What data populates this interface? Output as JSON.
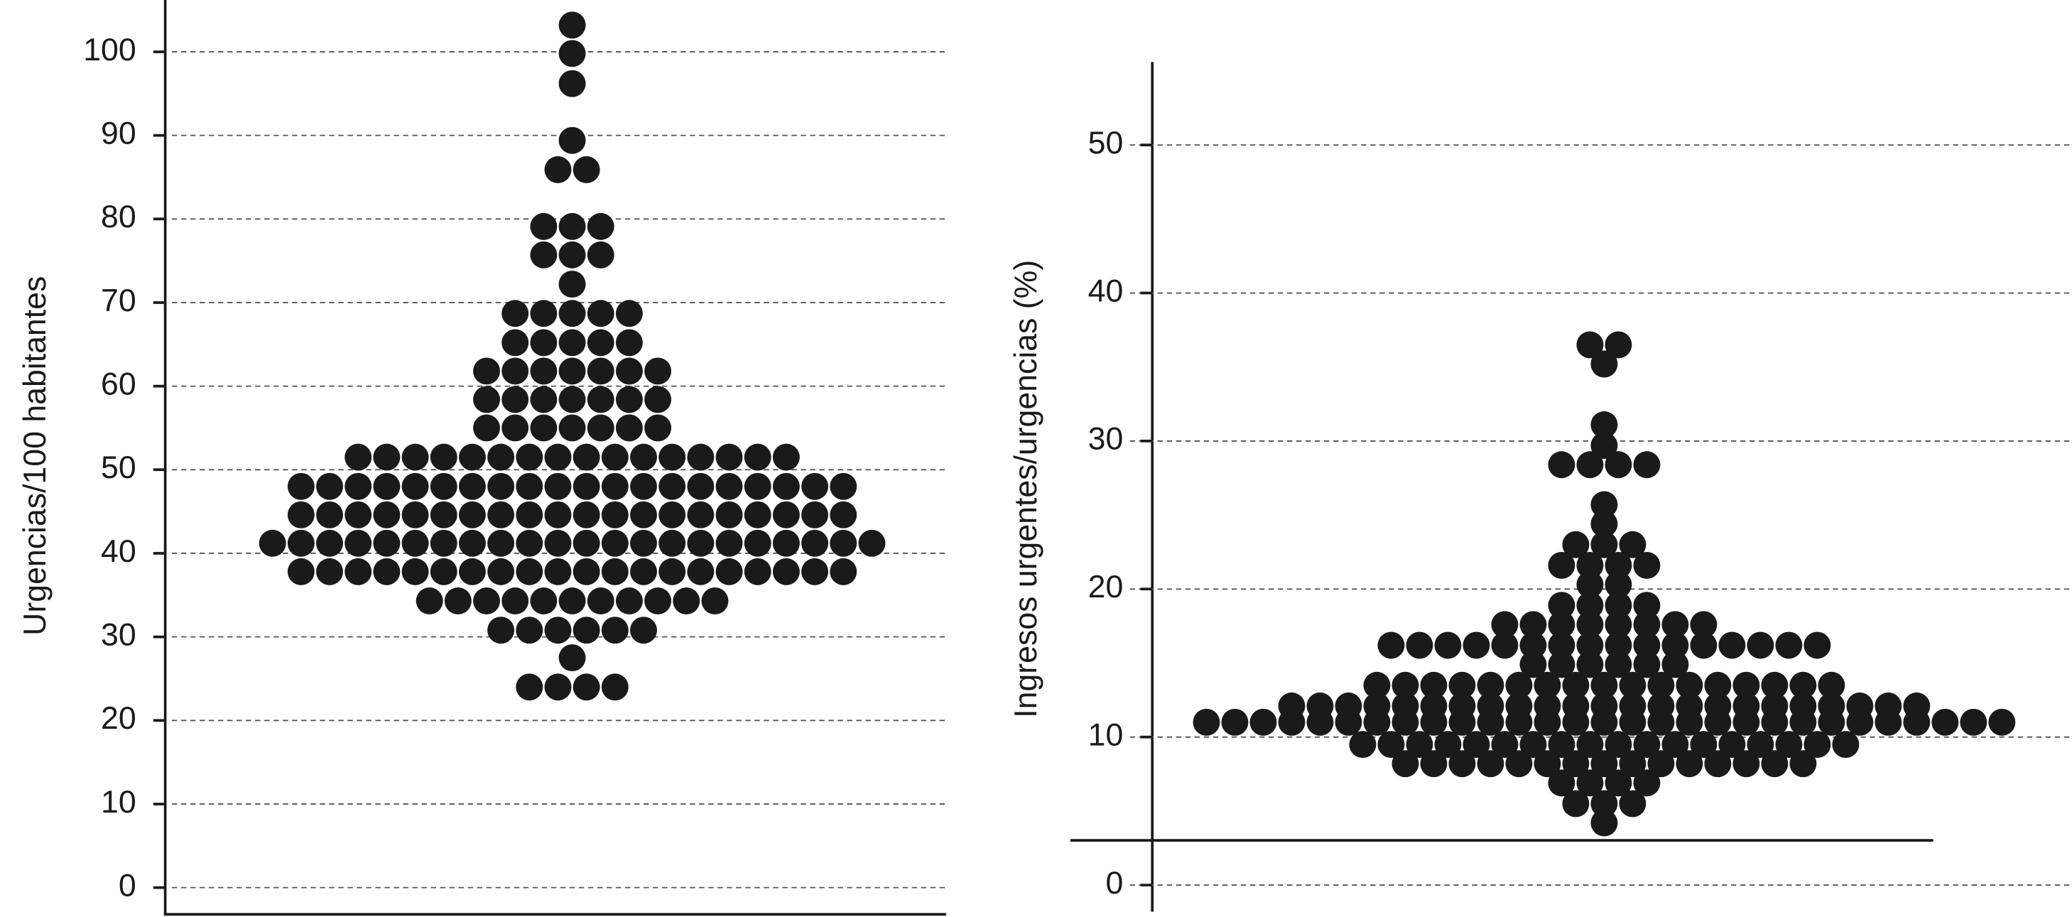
{
  "chart_data": [
    {
      "type": "dot",
      "ylabel": "Urgencias/100 habitantes",
      "color": "#1a1a1a",
      "grid": true,
      "ylim": [
        -3.2,
        106.2
      ],
      "yticks": [
        0,
        10,
        20,
        30,
        40,
        50,
        60,
        70,
        80,
        90,
        100
      ],
      "values": [
        103.2,
        99.8,
        96.2,
        89.4,
        85.9,
        85.9,
        79.1,
        79.1,
        79.1,
        75.7,
        75.7,
        75.7,
        72.2,
        68.7,
        68.7,
        68.7,
        68.7,
        68.7,
        65.2,
        65.2,
        65.2,
        65.2,
        65.2,
        61.8,
        61.8,
        61.8,
        61.8,
        61.8,
        61.8,
        61.8,
        58.4,
        58.4,
        58.4,
        58.4,
        58.4,
        58.4,
        58.4,
        55,
        55,
        55,
        55,
        55,
        55,
        55,
        51.5,
        51.5,
        51.5,
        51.5,
        51.5,
        51.5,
        51.5,
        51.5,
        51.5,
        51.5,
        51.5,
        51.5,
        51.5,
        51.5,
        51.5,
        51.5,
        48,
        48,
        48,
        48,
        48,
        48,
        48,
        48,
        48,
        48,
        48,
        48,
        48,
        48,
        48,
        48,
        48,
        48,
        48,
        48,
        44.6,
        44.6,
        44.6,
        44.6,
        44.6,
        44.6,
        44.6,
        44.6,
        44.6,
        44.6,
        44.6,
        44.6,
        44.6,
        44.6,
        44.6,
        44.6,
        44.6,
        44.6,
        44.6,
        44.6,
        41.2,
        41.2,
        41.2,
        41.2,
        41.2,
        41.2,
        41.2,
        41.2,
        41.2,
        41.2,
        41.2,
        41.2,
        41.2,
        41.2,
        41.2,
        41.2,
        41.2,
        41.2,
        41.2,
        41.2,
        41.2,
        41.2,
        37.8,
        37.8,
        37.8,
        37.8,
        37.8,
        37.8,
        37.8,
        37.8,
        37.8,
        37.8,
        37.8,
        37.8,
        37.8,
        37.8,
        37.8,
        37.8,
        37.8,
        37.8,
        37.8,
        37.8,
        34.3,
        34.3,
        34.3,
        34.3,
        34.3,
        34.3,
        34.3,
        34.3,
        34.3,
        34.3,
        34.3,
        30.8,
        30.8,
        30.8,
        30.8,
        30.8,
        30.8,
        27.5,
        24,
        24,
        24,
        24
      ]
    },
    {
      "type": "dot",
      "ylabel": "Ingresos urgentes/urgencias (%)",
      "color": "#1a1a1a",
      "grid": true,
      "ylim": [
        -1.8,
        55.6
      ],
      "yticks": [
        0,
        10,
        20,
        30,
        40,
        50
      ],
      "values": [
        36.5,
        36.5,
        35.2,
        31.1,
        29.7,
        28.4,
        28.4,
        28.4,
        28.4,
        25.7,
        24.4,
        23,
        23,
        23,
        21.6,
        21.6,
        21.6,
        21.6,
        20.3,
        20.3,
        18.9,
        18.9,
        18.9,
        18.9,
        17.6,
        17.6,
        17.6,
        17.6,
        17.6,
        17.6,
        17.6,
        17.6,
        16.2,
        16.2,
        16.2,
        16.2,
        16.2,
        16.2,
        16.2,
        16.2,
        16.2,
        16.2,
        16.2,
        16.2,
        16.2,
        16.2,
        16.2,
        16.2,
        14.9,
        14.9,
        14.9,
        14.9,
        14.9,
        14.9,
        13.5,
        13.5,
        13.5,
        13.5,
        13.5,
        13.5,
        13.5,
        13.5,
        13.5,
        13.5,
        13.5,
        13.5,
        13.5,
        13.5,
        13.5,
        13.5,
        13.5,
        12.1,
        12.1,
        12.1,
        12.1,
        12.1,
        12.1,
        12.1,
        12.1,
        12.1,
        12.1,
        12.1,
        12.1,
        12.1,
        12.1,
        12.1,
        12.1,
        12.1,
        12.1,
        12.1,
        12.1,
        12.1,
        12.1,
        12.1,
        11,
        11,
        11,
        11,
        11,
        11,
        11,
        11,
        11,
        11,
        11,
        11,
        11,
        11,
        11,
        11,
        11,
        11,
        11,
        11,
        11,
        11,
        11,
        11,
        11,
        11,
        11,
        11,
        11,
        9.5,
        9.5,
        9.5,
        9.5,
        9.5,
        9.5,
        9.5,
        9.5,
        9.5,
        9.5,
        9.5,
        9.5,
        9.5,
        9.5,
        9.5,
        9.5,
        9.5,
        9.5,
        8.2,
        8.2,
        8.2,
        8.2,
        8.2,
        8.2,
        8.2,
        8.2,
        8.2,
        8.2,
        8.2,
        8.2,
        8.2,
        8.2,
        8.2,
        6.9,
        6.9,
        6.9,
        6.9,
        5.5,
        5.5,
        5.5,
        4.2
      ]
    }
  ]
}
